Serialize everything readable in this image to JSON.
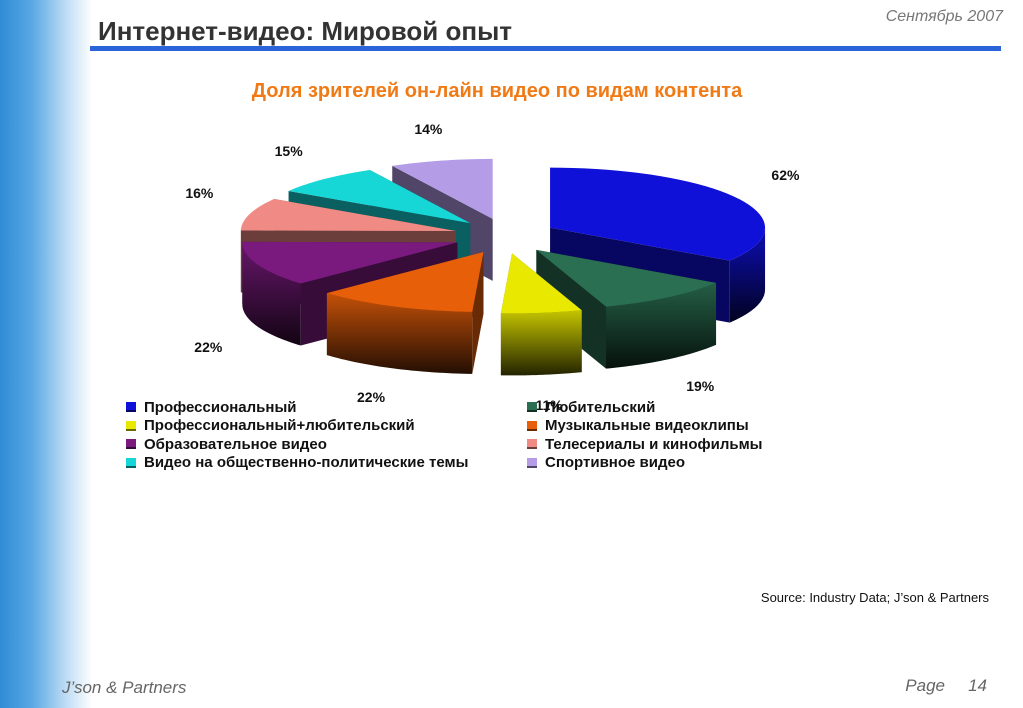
{
  "header": {
    "title": "Интернет-видео: Мировой опыт",
    "date": "Сентябрь 2007"
  },
  "chart_data": {
    "type": "pie",
    "title": "Доля зрителей он-лайн видео по видам контента",
    "slices": [
      {
        "name": "Профессиональный",
        "label": "62%",
        "value": 62,
        "color": "#0f10d8"
      },
      {
        "name": "Любительский",
        "label": "19%",
        "value": 19,
        "color": "#2a6f52"
      },
      {
        "name": "Профессиональный+любительский",
        "label": "11%",
        "value": 11,
        "color": "#e8e800"
      },
      {
        "name": "Музыкальные видеоклипы",
        "label": "22%",
        "value": 22,
        "color": "#e85f0a"
      },
      {
        "name": "Образовательное видео",
        "label": "22%",
        "value": 22,
        "color": "#7a1a7e"
      },
      {
        "name": "Телесериалы и кинофильмы",
        "label": "16%",
        "value": 16,
        "color": "#f08a84"
      },
      {
        "name": "Видео на общественно-политические темы",
        "label": "15%",
        "value": 15,
        "color": "#17d6d6"
      },
      {
        "name": "Спортивное видео",
        "label": "14%",
        "value": 14,
        "color": "#b59ce6"
      }
    ],
    "legend_columns": 2,
    "style": "3d-exploded"
  },
  "source": "Source: Industry Data; J’son & Partners",
  "footer": {
    "company": "J’son & Partners",
    "page_label": "Page",
    "page_number": "14"
  }
}
